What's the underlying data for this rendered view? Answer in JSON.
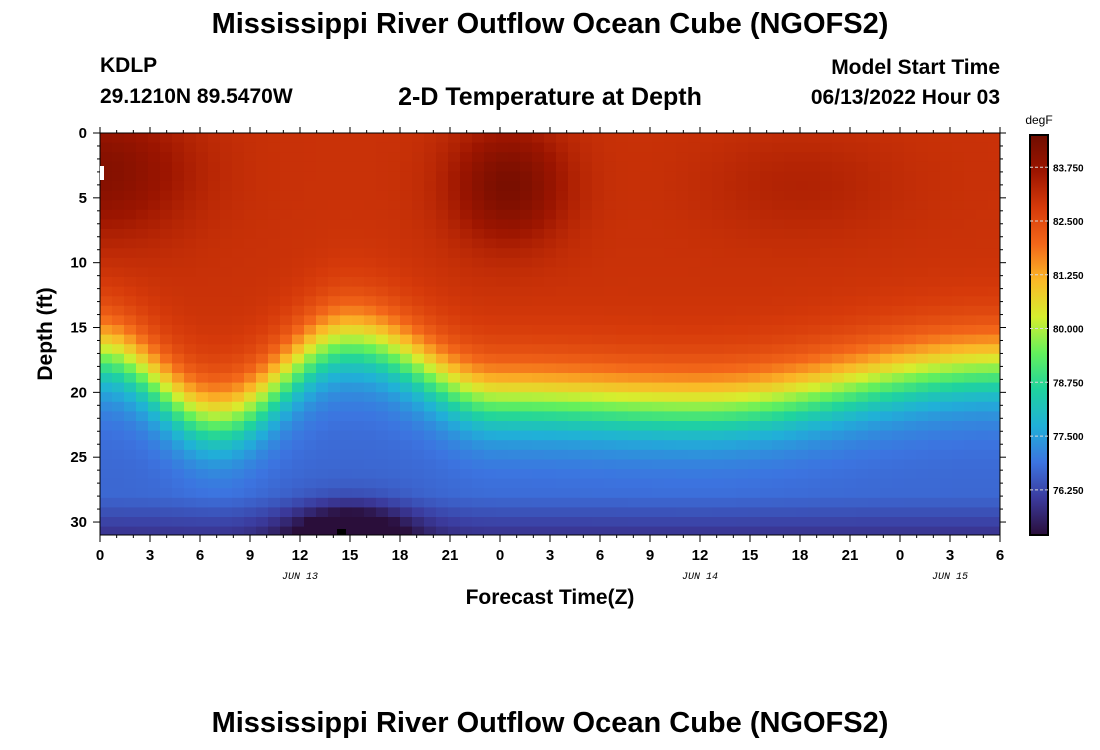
{
  "page": {
    "title_top": "Mississippi River Outflow Ocean Cube (NGOFS2)",
    "title_bottom": "Mississippi River Outflow Ocean Cube (NGOFS2)",
    "station_id": "KDLP",
    "coordinates": "29.1210N  89.5470W",
    "subtitle": "2-D Temperature at Depth",
    "model_start_label": "Model Start Time",
    "model_start_value": "06/13/2022 Hour 03"
  },
  "chart_data": {
    "type": "heatmap",
    "title": "2-D Temperature at Depth",
    "xlabel": "Forecast Time(Z)",
    "ylabel": "Depth (ft)",
    "x_range_hours": [
      0,
      54
    ],
    "x_ticks": [
      "0",
      "3",
      "6",
      "9",
      "12",
      "15",
      "18",
      "21",
      "0",
      "3",
      "6",
      "9",
      "12",
      "15",
      "18",
      "21",
      "0",
      "3",
      "6"
    ],
    "date_labels": [
      {
        "hour": 12,
        "label": "JUN 13"
      },
      {
        "hour": 36,
        "label": "JUN 14"
      },
      {
        "hour": 51,
        "label": "JUN 15"
      }
    ],
    "y_range": [
      0,
      31
    ],
    "y_ticks": [
      0,
      5,
      10,
      15,
      20,
      25,
      30
    ],
    "y_inverted": true,
    "colorbar": {
      "unit": "degF",
      "min": 75.2,
      "max": 84.5,
      "ticks": [
        83.75,
        82.5,
        81.25,
        80.0,
        78.75,
        77.5,
        76.25
      ],
      "tick_labels": [
        "83.750",
        "82.500",
        "81.250",
        "80.000",
        "78.750",
        "77.500",
        "76.250"
      ],
      "colormap": [
        "#2a0e3a",
        "#3b3a9c",
        "#3c74e0",
        "#20b0d8",
        "#1fd39e",
        "#63f05c",
        "#d6ee2e",
        "#fbb827",
        "#f36719",
        "#d63a0a",
        "#9c1500",
        "#6f0d00"
      ]
    },
    "field_description": {
      "surface_warm_core_hours": [
        0,
        25
      ],
      "thermocline_depth_ft": [
        [
          0,
          17
        ],
        [
          7,
          22
        ],
        [
          15,
          16
        ],
        [
          24,
          20.5
        ],
        [
          36,
          21
        ],
        [
          54,
          18
        ]
      ],
      "bottom_cold_pool_hour": 15
    }
  }
}
